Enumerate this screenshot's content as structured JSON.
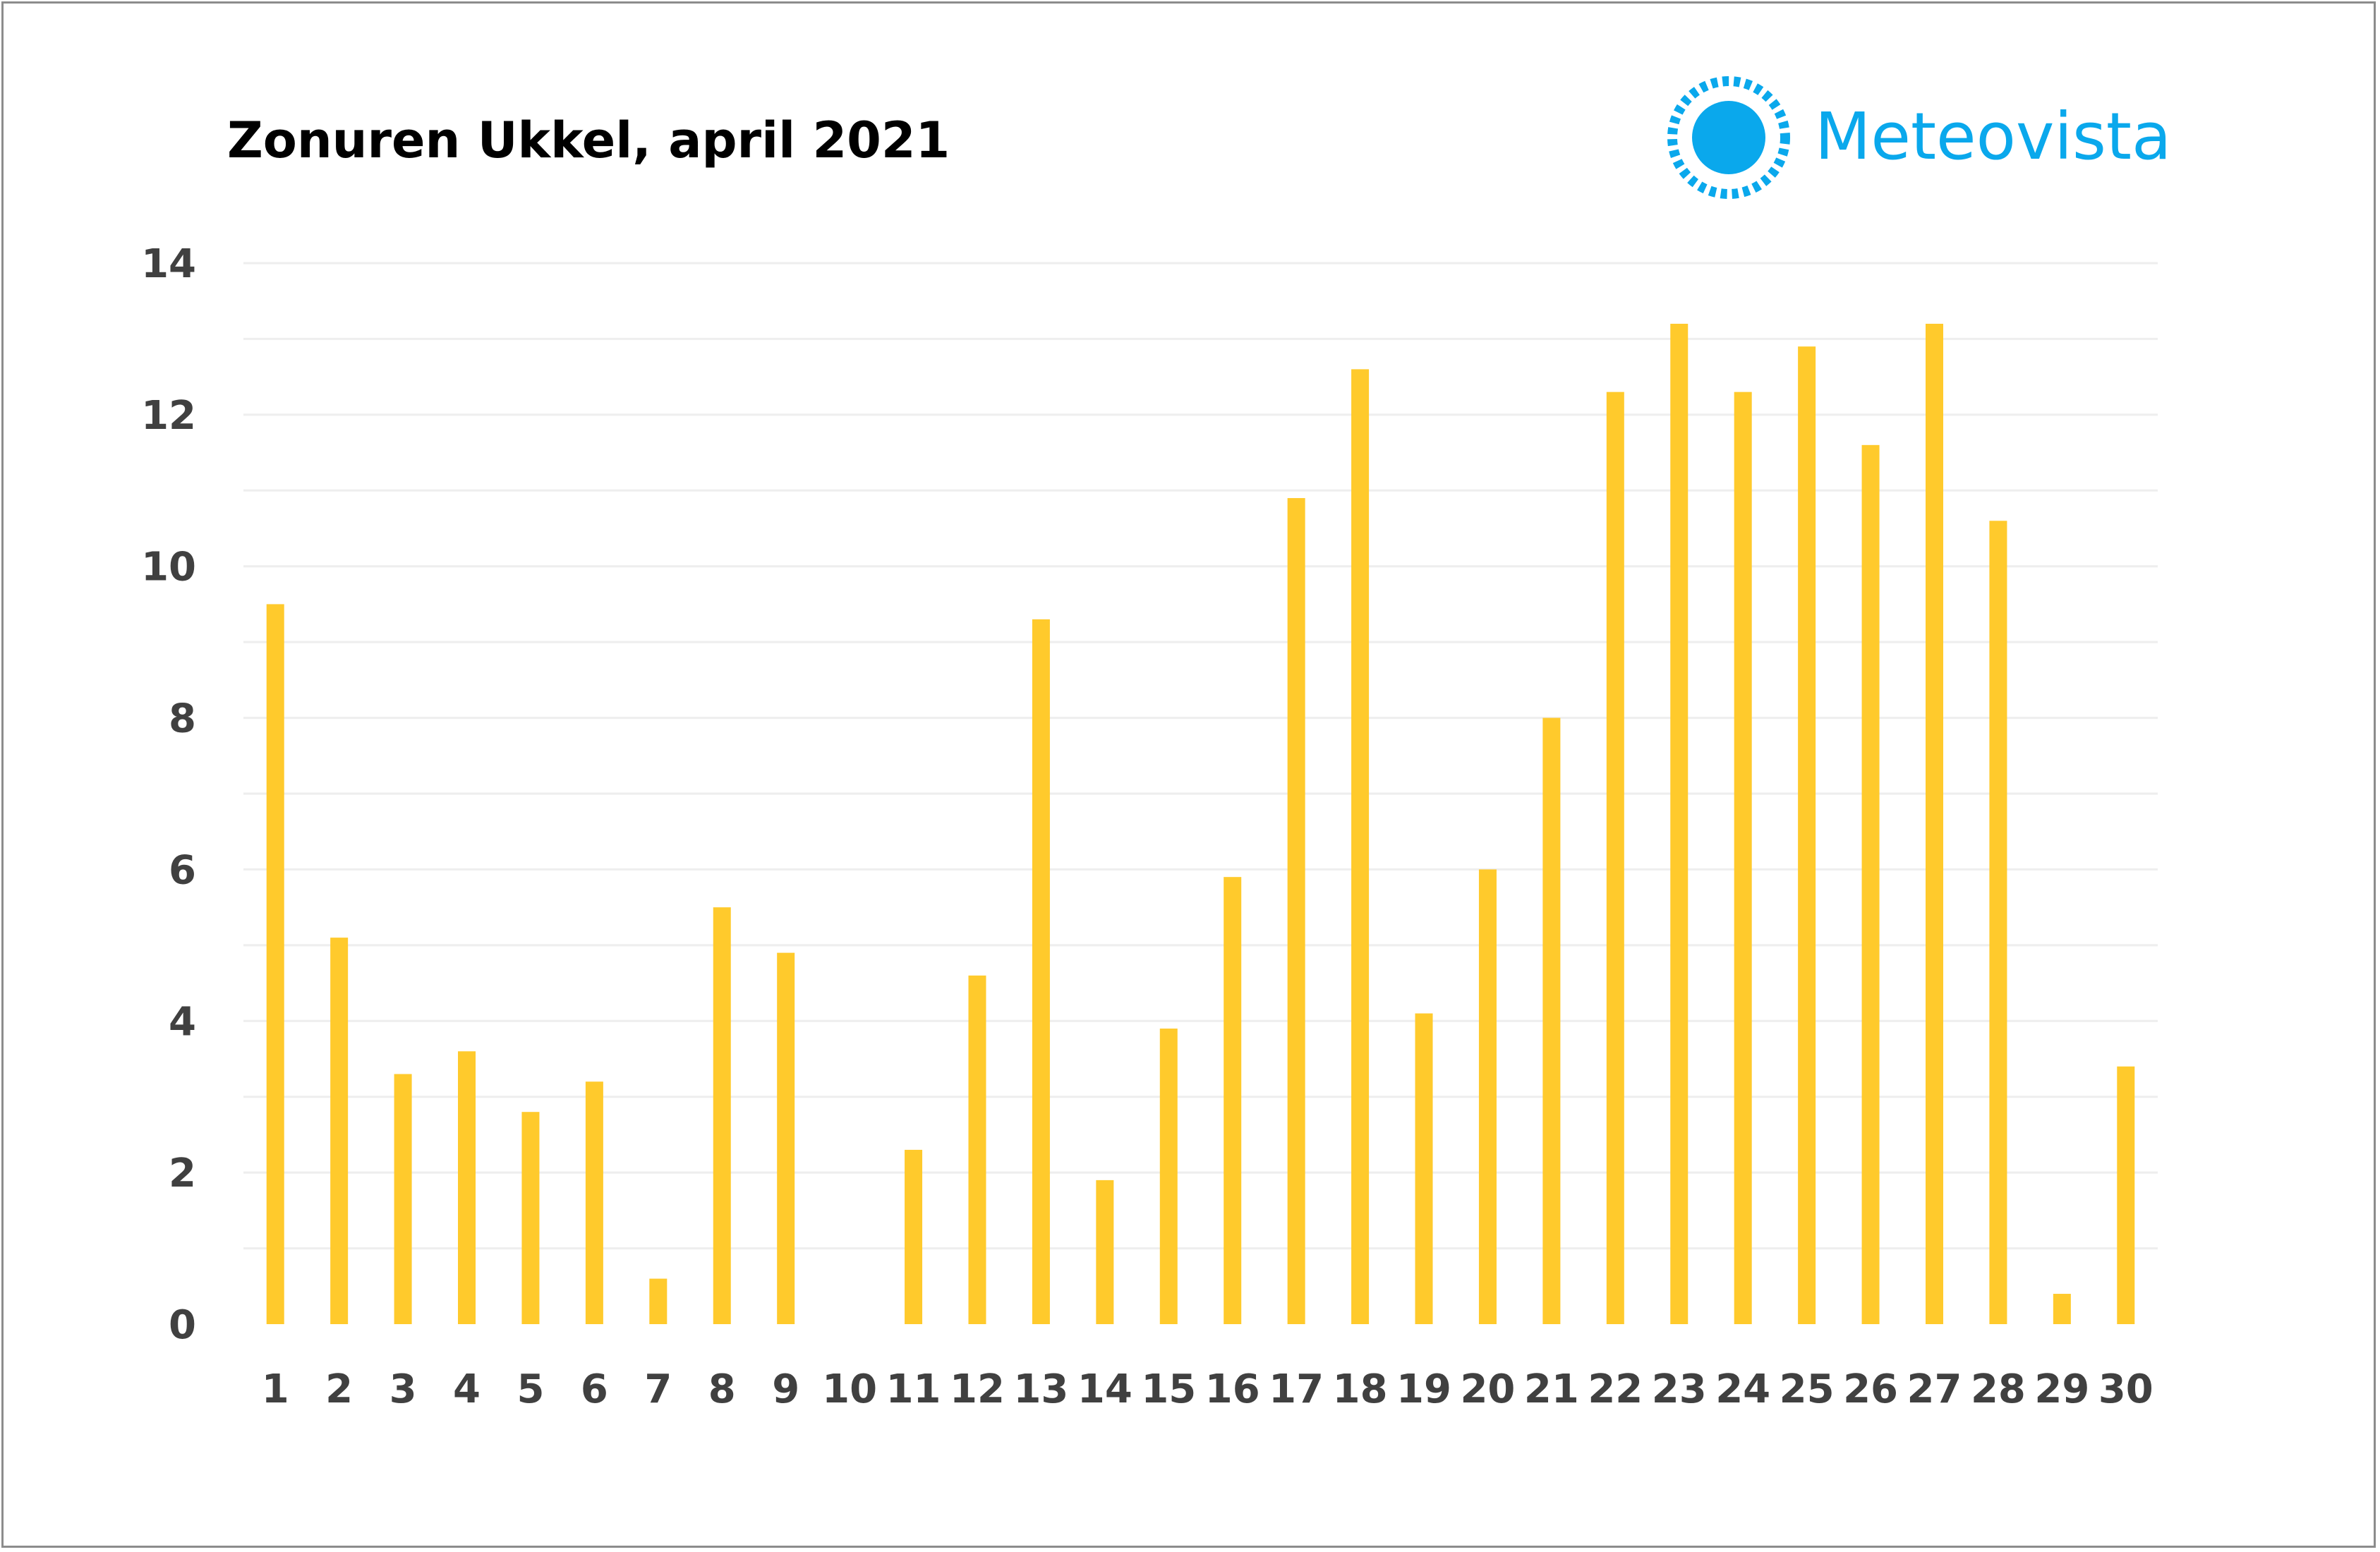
{
  "chart_data": {
    "type": "bar",
    "title": "Zonuren Ukkel, april 2021",
    "xlabel": "",
    "ylabel": "",
    "categories": [
      "1",
      "2",
      "3",
      "4",
      "5",
      "6",
      "7",
      "8",
      "9",
      "10",
      "11",
      "12",
      "13",
      "14",
      "15",
      "16",
      "17",
      "18",
      "19",
      "20",
      "21",
      "22",
      "23",
      "24",
      "25",
      "26",
      "27",
      "28",
      "29",
      "30"
    ],
    "values": [
      9.5,
      5.1,
      3.3,
      3.6,
      2.8,
      3.2,
      0.6,
      5.5,
      4.9,
      0,
      2.3,
      4.6,
      9.3,
      1.9,
      3.9,
      5.9,
      10.9,
      12.6,
      4.1,
      6.0,
      8.0,
      12.3,
      13.2,
      12.3,
      12.9,
      11.6,
      13.2,
      10.6,
      0.4,
      3.4
    ],
    "ylim": [
      0,
      14
    ],
    "yticks": [
      "0",
      "2",
      "4",
      "6",
      "8",
      "10",
      "12",
      "14"
    ],
    "grid": true,
    "bar_color": "#FFCA2C",
    "grid_color": "#eeeeee"
  },
  "logo": {
    "text": "Meteovista",
    "color": "#0aa8ec"
  }
}
